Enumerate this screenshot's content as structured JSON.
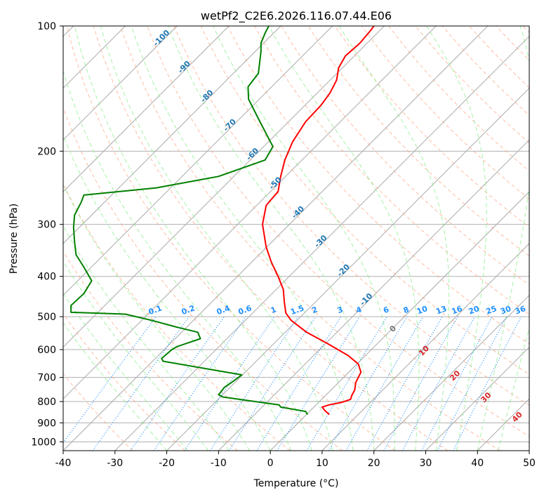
{
  "chart_data": {
    "type": "line",
    "title": "wetPf2_C2E6.2026.116.07.44.E06",
    "xlabel": "Temperature (°C)",
    "ylabel": "Pressure (hPa)",
    "xlim": [
      -40,
      50
    ],
    "ylim": [
      1050,
      100
    ],
    "y_scale": "log",
    "x_ticks": [
      -40,
      -30,
      -20,
      -10,
      0,
      10,
      20,
      30,
      40,
      50
    ],
    "y_ticks": [
      100,
      200,
      300,
      400,
      500,
      600,
      700,
      800,
      900,
      1000
    ],
    "grid": "horizontal at pressure ticks",
    "colors": {
      "temperature": "#ff0000",
      "dewpoint": "#008000",
      "isotherm_label": "#1f77b4",
      "mixing_ratio": "#1e90ff",
      "dry_adiabat": "#ffa07a",
      "moist_adiabat": "#90ee90",
      "skew_isotherm": "#aaaaaa",
      "adiabat_label": "#d62728"
    },
    "series": [
      {
        "key": "temperature",
        "points": [
          [
            11.4,
            860
          ],
          [
            10.5,
            840
          ],
          [
            10,
            825
          ],
          [
            11.3,
            815
          ],
          [
            13.5,
            805
          ],
          [
            14.3,
            800
          ],
          [
            15.5,
            790
          ],
          [
            15.7,
            775
          ],
          [
            16.3,
            750
          ],
          [
            16.5,
            720
          ],
          [
            17.5,
            680
          ],
          [
            17,
            650
          ],
          [
            15,
            620
          ],
          [
            11,
            580
          ],
          [
            7,
            545
          ],
          [
            4,
            510
          ],
          [
            3,
            490
          ],
          [
            2.7,
            460
          ],
          [
            2.5,
            430
          ],
          [
            1.5,
            400
          ],
          [
            0.2,
            370
          ],
          [
            -0.8,
            340
          ],
          [
            -1.5,
            300
          ],
          [
            -0.8,
            270
          ],
          [
            1.5,
            250
          ],
          [
            2,
            230
          ],
          [
            2.8,
            210
          ],
          [
            4.3,
            190
          ],
          [
            6.8,
            170
          ],
          [
            9.8,
            155
          ],
          [
            11.5,
            145
          ],
          [
            12.8,
            135
          ],
          [
            13.2,
            126
          ],
          [
            14.5,
            118
          ],
          [
            17.3,
            110
          ],
          [
            19.5,
            102
          ],
          [
            20,
            100
          ]
        ]
      },
      {
        "key": "dewpoint",
        "points": [
          [
            7.2,
            860
          ],
          [
            6.8,
            845
          ],
          [
            2,
            825
          ],
          [
            1.7,
            815
          ],
          [
            -9.2,
            780
          ],
          [
            -10,
            770
          ],
          [
            -9.6,
            760
          ],
          [
            -8.9,
            740
          ],
          [
            -7.5,
            720
          ],
          [
            -5.5,
            690
          ],
          [
            -20.7,
            640
          ],
          [
            -21,
            630
          ],
          [
            -19,
            600
          ],
          [
            -18,
            590
          ],
          [
            -13.5,
            565
          ],
          [
            -14,
            545
          ],
          [
            -18,
            530
          ],
          [
            -23,
            510
          ],
          [
            -28,
            493
          ],
          [
            -38.5,
            488
          ],
          [
            -38.5,
            470
          ],
          [
            -36,
            440
          ],
          [
            -34.5,
            410
          ],
          [
            -36,
            380
          ],
          [
            -37.5,
            355
          ],
          [
            -37.8,
            330
          ],
          [
            -38,
            305
          ],
          [
            -37.8,
            285
          ],
          [
            -36.5,
            265
          ],
          [
            -36,
            255
          ],
          [
            -22,
            245
          ],
          [
            -10,
            230
          ],
          [
            -1,
            210
          ],
          [
            0.5,
            195
          ],
          [
            -2,
            170
          ],
          [
            -4.2,
            150
          ],
          [
            -4.3,
            140
          ],
          [
            -2.3,
            130
          ],
          [
            -1.8,
            115
          ],
          [
            -1.8,
            110
          ],
          [
            -1,
            104
          ],
          [
            -0.3,
            100
          ]
        ]
      }
    ],
    "isotherm_labels": [
      "-100",
      "-90",
      "-80",
      "-70",
      "-60",
      "-50",
      "-40",
      "-30",
      "-20",
      "-10"
    ],
    "isotherm_label_values": [
      -100,
      -90,
      -80,
      -70,
      -60,
      -50,
      -40,
      -30,
      -20,
      -10
    ],
    "mixing_ratio_labels": [
      "0.1",
      "0.2",
      "0.4",
      "0.6",
      "1",
      "1.5",
      "2",
      "3",
      "4",
      "6",
      "8",
      "10",
      "13",
      "16",
      "20",
      "25",
      "30",
      "36"
    ],
    "mixing_ratio_values": [
      0.1,
      0.2,
      0.4,
      0.6,
      1,
      1.5,
      2,
      3,
      4,
      6,
      8,
      10,
      13,
      16,
      20,
      25,
      30,
      36
    ],
    "moist_adiabat_labels": [
      "0",
      "10",
      "20",
      "30",
      "40"
    ],
    "moist_adiabat_values": [
      0,
      10,
      20,
      30,
      40
    ]
  }
}
